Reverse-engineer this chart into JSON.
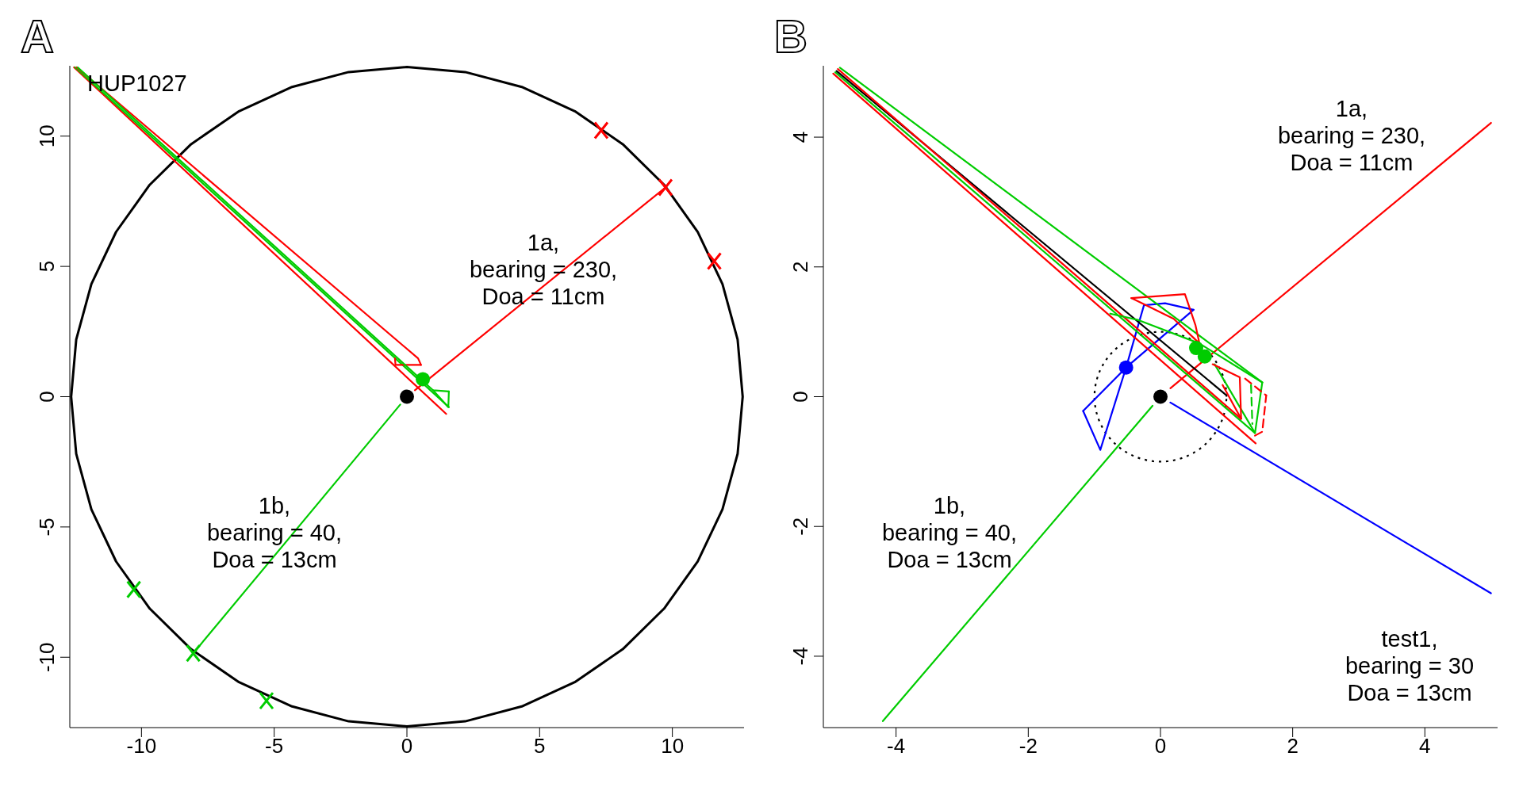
{
  "chart_data": [
    {
      "type": "line",
      "title": "A",
      "marker": "none",
      "xlim": [
        -12.7,
        12.7
      ],
      "ylim": [
        -12.7,
        12.7
      ],
      "xticks": [
        -10,
        -5,
        0,
        5,
        10
      ],
      "yticks": [
        -10,
        -5,
        0,
        5,
        10
      ],
      "annotations": [
        "HUP1027",
        "1a,\nbearing = 230,\nDoa = 11cm",
        "1b,\nbearing = 40,\nDoa = 13cm"
      ],
      "series": [
        {
          "color": "#ff0000",
          "x": [
            0.3,
            9.74
          ],
          "values": [
            0.25,
            8.03
          ]
        },
        {
          "color": "#00cc00",
          "x": [
            -8.05,
            -0.25
          ],
          "values": [
            -9.85,
            -0.3
          ]
        },
        {
          "color": "#ff0000",
          "x": [
            -12.54,
            1.48
          ],
          "values": [
            12.64,
            -0.66
          ]
        },
        {
          "color": "#00cc00",
          "x": [
            -12.5,
            1.58
          ],
          "values": [
            12.64,
            -0.4
          ]
        },
        {
          "color": "#ff0000",
          "x": [
            -12.44,
            0.42,
            0.53
          ],
          "values": [
            12.64,
            1.47,
            1.22
          ]
        },
        {
          "color": "#ff0000",
          "x": [
            -0.45,
            -0.43,
            0.53
          ],
          "values": [
            1.47,
            1.22,
            1.22
          ]
        },
        {
          "color": "#00cc00",
          "x": [
            -12.4,
            0.98,
            1.58
          ],
          "values": [
            12.64,
            0.25,
            0.2
          ]
        },
        {
          "color": "#00cc00",
          "x": [
            0.98,
            1.56,
            1.58
          ],
          "values": [
            0.25,
            -0.4,
            0.2
          ]
        },
        {
          "type": "scatter",
          "marker": "circle",
          "color": "#000000",
          "x": [
            0
          ],
          "values": [
            0
          ]
        },
        {
          "type": "scatter",
          "marker": "circle",
          "color": "#00cc00",
          "x": [
            0.6
          ],
          "values": [
            0.67
          ]
        },
        {
          "type": "scatter",
          "marker": "cross",
          "color": "#ff0000",
          "x": [
            9.74,
            7.32,
            11.58
          ],
          "values": [
            8.03,
            10.22,
            5.2
          ]
        },
        {
          "type": "scatter",
          "marker": "cross",
          "color": "#00cc00",
          "x": [
            -8.05,
            -10.29,
            -5.29
          ],
          "values": [
            -9.85,
            -7.4,
            -11.67
          ]
        }
      ]
    },
    {
      "type": "line",
      "title": "B",
      "marker": "none",
      "xlim": [
        -5.1,
        5.1
      ],
      "ylim": [
        -5.1,
        5.1
      ],
      "xticks": [
        -4,
        -2,
        0,
        2,
        4
      ],
      "yticks": [
        -4,
        -2,
        0,
        2,
        4
      ],
      "annotations": [
        "1a,\nbearing = 230,\nDoa = 11cm",
        "1b,\nbearing = 40,\nDoa = 13cm",
        "test1,\nbearing = 30\nDoa = 13cm"
      ],
      "series": [
        {
          "color": "#ff0000",
          "x": [
            0.15,
            5
          ],
          "values": [
            0.13,
            4.22
          ]
        },
        {
          "color": "#00cc00",
          "x": [
            -4.2,
            -0.12
          ],
          "values": [
            -5,
            -0.14
          ]
        },
        {
          "color": "#0000ff",
          "x": [
            0.15,
            5
          ],
          "values": [
            -0.09,
            -3.03
          ]
        },
        {
          "color": "#0000ff",
          "x": [
            -1.17,
            -0.52
          ],
          "values": [
            -0.22,
            0.45
          ]
        },
        {
          "color": "#0000ff",
          "x": [
            -1.17,
            -0.91,
            -0.52,
            -0.25,
            0.07,
            0.5
          ],
          "values": [
            -0.22,
            -0.82,
            0.45,
            1.41,
            1.44,
            1.34
          ]
        },
        {
          "color": "#0000ff",
          "x": [
            -0.52,
            0.5
          ],
          "values": [
            0.45,
            1.34
          ]
        },
        {
          "color": "#ff0000",
          "x": [
            -4.95,
            1.44
          ],
          "values": [
            4.98,
            -0.72
          ]
        },
        {
          "color": "#00cc00",
          "x": [
            -4.92,
            1.43
          ],
          "values": [
            5.0,
            -0.56
          ]
        },
        {
          "color": "#000000",
          "x": [
            -4.9,
            1.0
          ],
          "values": [
            5.02,
            0.02
          ]
        },
        {
          "color": "#ff0000",
          "x": [
            -4.88,
            1.22
          ],
          "values": [
            5.05,
            -0.34
          ]
        },
        {
          "color": "#00cc00",
          "x": [
            -4.85,
            1.54
          ],
          "values": [
            5.07,
            0.22
          ]
        },
        {
          "color": "#ff0000",
          "x": [
            -0.44,
            0.37,
            0.53,
            0.59
          ],
          "values": [
            1.52,
            1.58,
            1.1,
            0.82
          ]
        },
        {
          "color": "#ff0000",
          "x": [
            -0.44,
            0.2,
            0.59
          ],
          "values": [
            1.52,
            1.2,
            0.82
          ]
        },
        {
          "color": "#00cc00",
          "x": [
            -0.76,
            -0.33,
            0.59,
            1.54
          ],
          "values": [
            1.28,
            1.18,
            0.82,
            0.22
          ]
        },
        {
          "color": "#00cc00",
          "x": [
            0.82,
            1.43,
            1.54
          ],
          "values": [
            0.5,
            -0.56,
            0.22
          ]
        },
        {
          "color": "#ff0000",
          "x": [
            0.79,
            1.2,
            1.22
          ],
          "values": [
            0.5,
            0.3,
            -0.34
          ]
        },
        {
          "color": "#ff0000",
          "x": [
            0.94,
            1.22
          ],
          "values": [
            0.18,
            -0.34
          ]
        },
        {
          "color": "#ff0000",
          "line_style": "dashed",
          "x": [
            1.28,
            1.6
          ],
          "values": [
            0.28,
            0.02
          ]
        },
        {
          "color": "#ff0000",
          "line_style": "dashed",
          "x": [
            1.43,
            1.54,
            1.6
          ],
          "values": [
            -0.6,
            -0.54,
            0.02
          ]
        },
        {
          "color": "#00cc00",
          "line_style": "dashed",
          "x": [
            1.37,
            1.39
          ],
          "values": [
            0.18,
            -0.42
          ]
        },
        {
          "type": "scatter",
          "marker": "circle",
          "color": "#000000",
          "x": [
            0
          ],
          "values": [
            0
          ]
        },
        {
          "type": "scatter",
          "marker": "circle",
          "color": "#0000ff",
          "x": [
            -0.52
          ],
          "values": [
            0.45
          ]
        },
        {
          "type": "scatter",
          "marker": "circle",
          "color": "#00cc00",
          "x": [
            0.54,
            0.67
          ],
          "values": [
            0.75,
            0.62
          ]
        }
      ]
    }
  ]
}
